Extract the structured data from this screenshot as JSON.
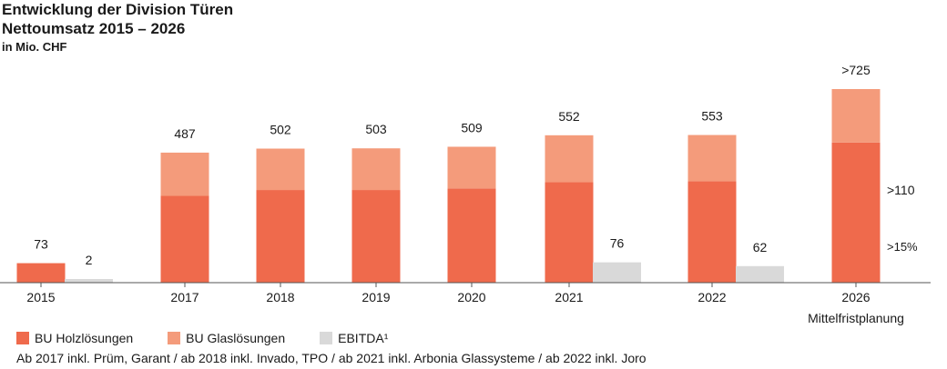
{
  "header": {
    "title_line1": "Entwicklung der Division Türen",
    "title_line2": "Nettoumsatz 2015 – 2026",
    "unit": "in Mio. CHF"
  },
  "colors": {
    "holz": "#ef6a4c",
    "glas": "#f49b7b",
    "ebitda": "#d9d9d9",
    "axis": "#555555",
    "text": "#1a1a1a"
  },
  "chart_data": {
    "type": "bar",
    "title": "Entwicklung der Division Türen",
    "ylim": [
      0,
      725
    ],
    "categories": [
      "2015",
      "2017",
      "2018",
      "2019",
      "2020",
      "2021",
      "2022",
      "2026"
    ],
    "category_sublabels": [
      "",
      "",
      "",
      "",
      "",
      "",
      "",
      "Mittelfristplanung"
    ],
    "series": [
      {
        "name": "BU Holzlösungen",
        "values": [
          73,
          325,
          347,
          347,
          353,
          376,
          380,
          525
        ]
      },
      {
        "name": "BU Glaslösungen",
        "values": [
          0,
          162,
          155,
          156,
          156,
          176,
          173,
          200
        ]
      },
      {
        "name": "EBITDA¹",
        "values": [
          2,
          null,
          null,
          null,
          null,
          76,
          62,
          null
        ]
      }
    ],
    "stack_totals": [
      "73",
      "487",
      "502",
      "503",
      "509",
      "552",
      "553",
      ">725"
    ],
    "ebitda_labels": [
      "2",
      "",
      "",
      "",
      "",
      "76",
      "62",
      ""
    ],
    "annotations": [
      ">110",
      ">15%"
    ]
  },
  "legend": {
    "items": [
      {
        "label": "BU Holzlösungen",
        "color_key": "holz"
      },
      {
        "label": "BU Glaslösungen",
        "color_key": "glas"
      },
      {
        "label": "EBITDA¹",
        "color_key": "ebitda"
      }
    ]
  },
  "footnote": "Ab 2017 inkl. Prüm, Garant / ab 2018 inkl. Invado, TPO / ab 2021 inkl. Arbonia Glassysteme / ab 2022 inkl. Joro"
}
